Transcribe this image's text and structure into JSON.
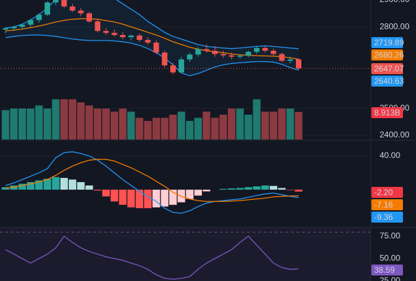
{
  "chart_data": [
    {
      "type": "candlestick",
      "up_color": "#26a69a",
      "down_color": "#ef5350",
      "ylim": [
        2385,
        2899
      ],
      "yticks": [
        {
          "value": 2900,
          "label": "2900.00"
        },
        {
          "value": 2800,
          "label": "2800.00"
        },
        {
          "value": 2500,
          "label": "2500.00"
        },
        {
          "value": 2400,
          "label": "2400.00"
        }
      ],
      "open": [
        2790,
        2795,
        2800,
        2808,
        2825,
        2845,
        2890,
        2905,
        2875,
        2860,
        2850,
        2820,
        2785,
        2778,
        2770,
        2762,
        2768,
        2752,
        2742,
        2705,
        2658,
        2632,
        2680,
        2698,
        2718,
        2712,
        2700,
        2695,
        2690,
        2694,
        2708,
        2722,
        2712,
        2700,
        2675,
        2680
      ],
      "high": [
        2800,
        2805,
        2812,
        2830,
        2850,
        2895,
        2915,
        2915,
        2885,
        2870,
        2855,
        2830,
        2795,
        2790,
        2780,
        2772,
        2775,
        2762,
        2750,
        2712,
        2668,
        2690,
        2705,
        2725,
        2735,
        2730,
        2712,
        2705,
        2700,
        2712,
        2730,
        2730,
        2720,
        2705,
        2690,
        2685
      ],
      "low": [
        2775,
        2785,
        2790,
        2800,
        2815,
        2840,
        2880,
        2870,
        2855,
        2840,
        2815,
        2780,
        2770,
        2765,
        2755,
        2750,
        2745,
        2735,
        2700,
        2650,
        2625,
        2628,
        2670,
        2690,
        2705,
        2690,
        2685,
        2680,
        2682,
        2688,
        2700,
        2705,
        2695,
        2670,
        2665,
        2640
      ],
      "close": [
        2795,
        2800,
        2808,
        2825,
        2845,
        2890,
        2905,
        2875,
        2860,
        2850,
        2820,
        2785,
        2778,
        2770,
        2762,
        2768,
        2752,
        2742,
        2705,
        2658,
        2632,
        2680,
        2698,
        2718,
        2712,
        2700,
        2695,
        2690,
        2694,
        2708,
        2722,
        2712,
        2700,
        2675,
        2680,
        2647.07
      ],
      "overlays": [
        {
          "color": "#2196f3",
          "values": [
            2795,
            2800,
            2810,
            2825,
            2845,
            2870,
            2900,
            2920,
            2930,
            2935,
            2935,
            2930,
            2920,
            2905,
            2885,
            2865,
            2845,
            2820,
            2800,
            2780,
            2765,
            2755,
            2745,
            2735,
            2728,
            2725,
            2722,
            2720,
            2722,
            2725,
            2728,
            2730,
            2728,
            2725,
            2722,
            2719.89
          ]
        },
        {
          "color": "#f57c00",
          "values": [
            2785,
            2788,
            2792,
            2797,
            2803,
            2810,
            2818,
            2824,
            2828,
            2830,
            2830,
            2828,
            2823,
            2818,
            2810,
            2800,
            2790,
            2780,
            2770,
            2758,
            2745,
            2735,
            2725,
            2718,
            2712,
            2708,
            2705,
            2700,
            2697,
            2695,
            2694,
            2693,
            2692,
            2690,
            2686,
            2680.26
          ]
        },
        {
          "color": "#2196f3",
          "values": [
            2760,
            2765,
            2768,
            2770,
            2770,
            2768,
            2765,
            2760,
            2755,
            2752,
            2750,
            2750,
            2750,
            2748,
            2745,
            2740,
            2732,
            2720,
            2705,
            2685,
            2660,
            2630,
            2620,
            2628,
            2640,
            2652,
            2660,
            2665,
            2668,
            2670,
            2672,
            2672,
            2670,
            2662,
            2650,
            2640.63
          ]
        }
      ]
    },
    {
      "type": "volume",
      "ylim": [
        0,
        14
      ],
      "last_label": "8.913B",
      "values": [
        9.5,
        10,
        10,
        10,
        11,
        10,
        13,
        13,
        13,
        12,
        11,
        10,
        10,
        9,
        10,
        9,
        7,
        6,
        7,
        7,
        8,
        9,
        6,
        7,
        9,
        7,
        8,
        10,
        10,
        8,
        13,
        9,
        9,
        10,
        10,
        8.913
      ]
    },
    {
      "type": "macd",
      "ylim": [
        -44,
        58
      ],
      "yticks": [
        {
          "value": 40,
          "label": "40.00"
        }
      ],
      "histogram": {
        "label": "-2.20",
        "values": [
          3,
          5,
          7,
          9,
          11,
          13,
          15,
          14,
          12,
          9,
          5,
          -1,
          -8,
          -14,
          -18,
          -21,
          -22,
          -22,
          -21,
          -20,
          -18,
          -15,
          -11,
          -7,
          -2,
          0,
          1,
          1.5,
          2,
          3,
          4,
          5,
          4.5,
          2,
          -0.5,
          -2.2
        ]
      },
      "lines": [
        {
          "color": "#2196f3",
          "last_label": "-9.36",
          "values": [
            5,
            8,
            12,
            16,
            20,
            25,
            38,
            44,
            45,
            43,
            40,
            35,
            28,
            20,
            12,
            5,
            -2,
            -8,
            -14,
            -22,
            -27,
            -28,
            -25,
            -20,
            -16,
            -14,
            -13,
            -12,
            -11,
            -9,
            -7,
            -5,
            -4,
            -6,
            -8,
            -9.36
          ]
        },
        {
          "color": "#f57c00",
          "last_label": "-7.16",
          "values": [
            2,
            3,
            5,
            7,
            9,
            12,
            17,
            23,
            28,
            32,
            35,
            36,
            36,
            34,
            30,
            26,
            21,
            16,
            10,
            4,
            -3,
            -8,
            -11,
            -13,
            -14,
            -14,
            -14,
            -13.5,
            -13,
            -12,
            -11,
            -10,
            -8.5,
            -8,
            -7.5,
            -7.16
          ]
        }
      ]
    },
    {
      "type": "line",
      "color": "#7e57c2",
      "ylim": [
        25,
        84
      ],
      "yticks": [
        {
          "value": 75,
          "label": "75.00"
        },
        {
          "value": 50,
          "label": "50.00"
        },
        {
          "value": 25,
          "label": "25.00"
        }
      ],
      "values": [
        60,
        55,
        50,
        45,
        50,
        55,
        62,
        75,
        68,
        62,
        58,
        55,
        52,
        50,
        48,
        45,
        42,
        38,
        32,
        28,
        27,
        28,
        30,
        38,
        45,
        50,
        55,
        60,
        68,
        75,
        65,
        55,
        45,
        40,
        38,
        38.59
      ]
    }
  ]
}
